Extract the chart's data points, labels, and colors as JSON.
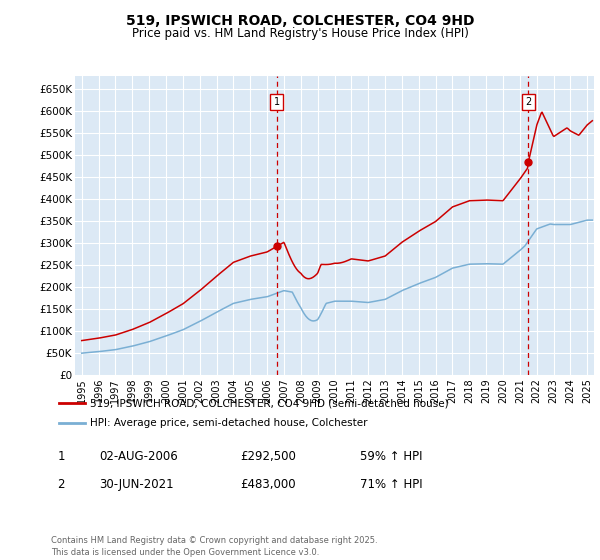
{
  "title": "519, IPSWICH ROAD, COLCHESTER, CO4 9HD",
  "subtitle": "Price paid vs. HM Land Registry's House Price Index (HPI)",
  "ylabel_ticks": [
    "£0",
    "£50K",
    "£100K",
    "£150K",
    "£200K",
    "£250K",
    "£300K",
    "£350K",
    "£400K",
    "£450K",
    "£500K",
    "£550K",
    "£600K",
    "£650K"
  ],
  "ylim": [
    0,
    680000
  ],
  "yticks": [
    0,
    50000,
    100000,
    150000,
    200000,
    250000,
    300000,
    350000,
    400000,
    450000,
    500000,
    550000,
    600000,
    650000
  ],
  "xlim_start": 1994.6,
  "xlim_end": 2025.4,
  "fig_bg_color": "#ffffff",
  "plot_bg_color": "#dce9f5",
  "red_line_color": "#cc0000",
  "blue_line_color": "#7aafd4",
  "grid_color": "#ffffff",
  "sale1_x": 2006.58,
  "sale1_y": 292500,
  "sale2_x": 2021.5,
  "sale2_y": 483000,
  "legend1": "519, IPSWICH ROAD, COLCHESTER, CO4 9HD (semi-detached house)",
  "legend2": "HPI: Average price, semi-detached house, Colchester",
  "table_rows": [
    {
      "num": "1",
      "date": "02-AUG-2006",
      "price": "£292,500",
      "pct": "59% ↑ HPI"
    },
    {
      "num": "2",
      "date": "30-JUN-2021",
      "price": "£483,000",
      "pct": "71% ↑ HPI"
    }
  ],
  "footer": "Contains HM Land Registry data © Crown copyright and database right 2025.\nThis data is licensed under the Open Government Licence v3.0.",
  "hpi_years": [
    1995,
    1996,
    1997,
    1998,
    1999,
    2000,
    2001,
    2002,
    2003,
    2004,
    2005,
    2006,
    2007,
    2008,
    2009,
    2010,
    2011,
    2012,
    2013,
    2014,
    2015,
    2016,
    2017,
    2018,
    2019,
    2020,
    2021,
    2022,
    2023,
    2024,
    2025
  ],
  "hpi_values": [
    50000,
    53500,
    58000,
    66000,
    76000,
    89000,
    103000,
    122000,
    143000,
    163000,
    172000,
    178000,
    192000,
    185000,
    158000,
    168000,
    168000,
    165000,
    172000,
    192000,
    208000,
    222000,
    243000,
    252000,
    253000,
    252000,
    283000,
    318000,
    312000,
    312000,
    322000
  ]
}
